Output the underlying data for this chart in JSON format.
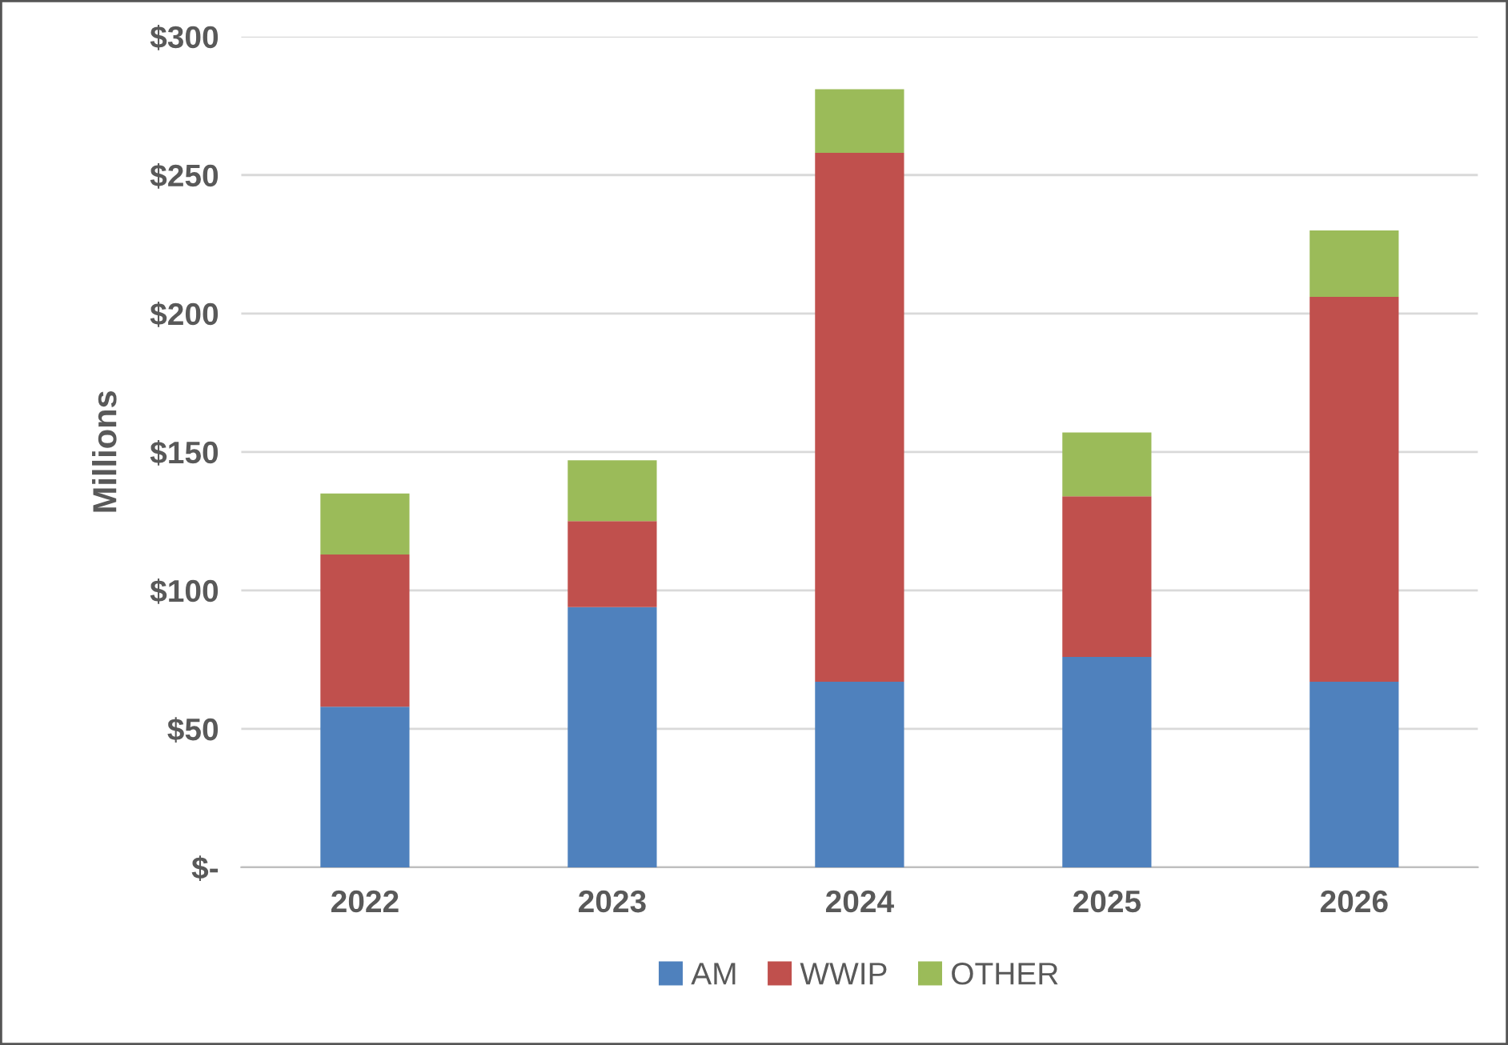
{
  "chart_data": {
    "type": "bar",
    "stacked": true,
    "ylabel": "Millions",
    "categories": [
      "2022",
      "2023",
      "2024",
      "2025",
      "2026"
    ],
    "series": [
      {
        "name": "AM",
        "color": "#4f81bd",
        "values": [
          58,
          94,
          67,
          76,
          67
        ]
      },
      {
        "name": "WWIP",
        "color": "#c0504d",
        "values": [
          55,
          31,
          191,
          58,
          139
        ]
      },
      {
        "name": "OTHER",
        "color": "#9bbb59",
        "values": [
          22,
          22,
          23,
          23,
          24
        ]
      }
    ],
    "ylim": [
      0,
      300
    ],
    "yticks": [
      {
        "value": 0,
        "label": "$-"
      },
      {
        "value": 50,
        "label": "$50"
      },
      {
        "value": 100,
        "label": "$100"
      },
      {
        "value": 150,
        "label": "$150"
      },
      {
        "value": 200,
        "label": "$200"
      },
      {
        "value": 250,
        "label": "$250"
      },
      {
        "value": 300,
        "label": "$300"
      }
    ],
    "grid": "y",
    "legend": "bottom"
  }
}
